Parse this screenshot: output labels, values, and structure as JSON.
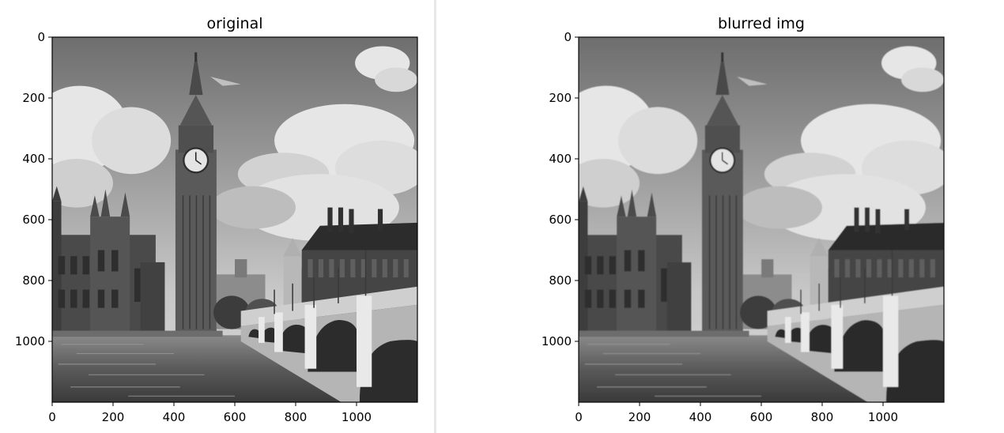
{
  "chart_data": [
    {
      "type": "image",
      "title": "original",
      "xlabel": "",
      "ylabel": "",
      "image_size": [
        1200,
        1200
      ],
      "xlim": [
        0,
        1200
      ],
      "ylim": [
        1200,
        0
      ],
      "xticks": [
        0,
        200,
        400,
        600,
        800,
        1000
      ],
      "yticks": [
        0,
        200,
        400,
        600,
        800,
        1000
      ],
      "grid": false,
      "colormap": "gray",
      "content": "black and white photo of Big Ben, the Houses of Parliament and Westminster Bridge over the Thames"
    },
    {
      "type": "image",
      "title": "blurred img",
      "xlabel": "",
      "ylabel": "",
      "image_size": [
        1200,
        1200
      ],
      "xlim": [
        0,
        1200
      ],
      "ylim": [
        1200,
        0
      ],
      "xticks": [
        0,
        200,
        400,
        600,
        800,
        1000
      ],
      "yticks": [
        0,
        200,
        400,
        600,
        800,
        1000
      ],
      "grid": false,
      "colormap": "gray",
      "blurred": true,
      "content": "same photo with slight blur"
    }
  ]
}
